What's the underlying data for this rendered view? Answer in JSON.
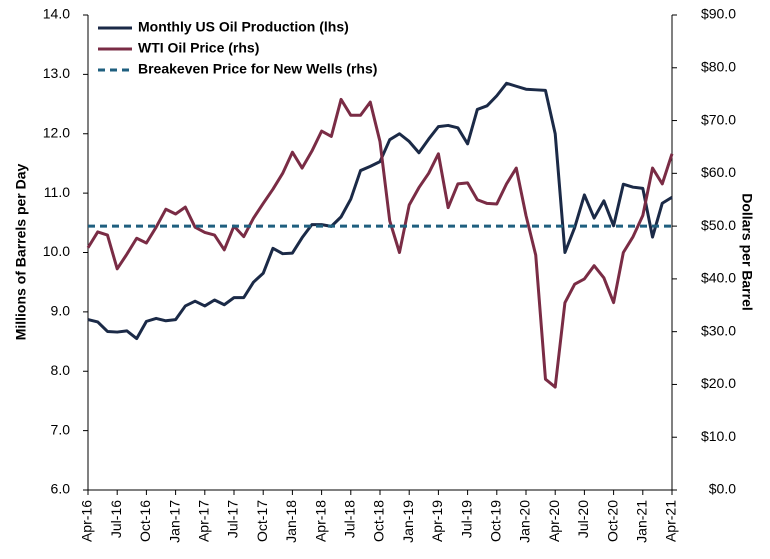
{
  "chart_data": {
    "type": "line",
    "y_label": "Millions of Barrels per Day",
    "y2_label": "Dollars per Barrel",
    "categories": [
      "Apr-16",
      null,
      null,
      "Jul-16",
      null,
      null,
      "Oct-16",
      null,
      null,
      "Jan-17",
      null,
      null,
      "Apr-17",
      null,
      null,
      "Jul-17",
      null,
      null,
      "Oct-17",
      null,
      null,
      "Jan-18",
      null,
      null,
      "Apr-18",
      null,
      null,
      "Jul-18",
      null,
      null,
      "Oct-18",
      null,
      null,
      "Jan-19",
      null,
      null,
      "Apr-19",
      null,
      null,
      "Jul-19",
      null,
      null,
      "Oct-19",
      null,
      null,
      "Jan-20",
      null,
      null,
      "Apr-20",
      null,
      null,
      "Jul-20",
      null,
      null,
      "Oct-20",
      null,
      null,
      "Jan-21",
      null,
      null,
      "Apr-21"
    ],
    "ylim": [
      6,
      14
    ],
    "yticks": [
      {
        "value": 6,
        "label": "6.0"
      },
      {
        "value": 7,
        "label": "7.0"
      },
      {
        "value": 8,
        "label": "8.0"
      },
      {
        "value": 9,
        "label": "9.0"
      },
      {
        "value": 10,
        "label": "10.0"
      },
      {
        "value": 11,
        "label": "11.0"
      },
      {
        "value": 12,
        "label": "12.0"
      },
      {
        "value": 13,
        "label": "13.0"
      },
      {
        "value": 14,
        "label": "14.0"
      }
    ],
    "y2lim": [
      0,
      90
    ],
    "y2ticks": [
      {
        "value": 0,
        "label": "$0.0"
      },
      {
        "value": 10,
        "label": "$10.0"
      },
      {
        "value": 20,
        "label": "$20.0"
      },
      {
        "value": 30,
        "label": "$30.0"
      },
      {
        "value": 40,
        "label": "$40.0"
      },
      {
        "value": 50,
        "label": "$50.0"
      },
      {
        "value": 60,
        "label": "$60.0"
      },
      {
        "value": 70,
        "label": "$70.0"
      },
      {
        "value": 80,
        "label": "$80.0"
      },
      {
        "value": 90,
        "label": "$90.0"
      }
    ],
    "legend": "upper left",
    "series": [
      {
        "name": "Monthly US Oil Production (lhs)",
        "color": "#1b2a47",
        "axis": "y",
        "values": [
          8.87,
          8.83,
          8.67,
          8.66,
          8.68,
          8.55,
          8.84,
          8.89,
          8.85,
          8.87,
          9.1,
          9.18,
          9.1,
          9.2,
          9.12,
          9.24,
          9.24,
          9.5,
          9.65,
          10.07,
          9.98,
          9.99,
          10.25,
          10.47,
          10.47,
          10.44,
          10.6,
          10.9,
          11.38,
          11.45,
          11.53,
          11.9,
          12.0,
          11.87,
          11.68,
          11.91,
          12.12,
          12.14,
          12.1,
          11.83,
          12.41,
          12.47,
          12.64,
          12.85,
          12.8,
          12.75,
          12.74,
          12.73,
          12.0,
          10.0,
          10.42,
          10.97,
          10.58,
          10.87,
          10.45,
          11.15,
          11.1,
          11.08,
          10.26,
          10.83,
          10.93
        ]
      },
      {
        "name": "WTI Oil Price (rhs)",
        "color": "#7a2c45",
        "axis": "y2",
        "values": [
          45.9,
          48.9,
          48.3,
          41.9,
          44.7,
          47.7,
          46.8,
          49.8,
          53.2,
          52.3,
          53.6,
          49.8,
          48.8,
          48.3,
          45.5,
          50.0,
          48.0,
          51.5,
          54.3,
          57.0,
          60.0,
          64.0,
          61.0,
          64.2,
          68.0,
          67.0,
          74.0,
          71.0,
          71.0,
          73.5,
          66.0,
          51.0,
          45.0,
          54.0,
          57.3,
          60.0,
          63.7,
          53.5,
          58.0,
          58.2,
          55.0,
          54.3,
          54.2,
          58.0,
          61.0,
          52.0,
          44.5,
          21.0,
          19.5,
          35.5,
          39.0,
          40.0,
          42.5,
          40.2,
          35.5,
          45.0,
          48.0,
          52.0,
          61.0,
          58.0,
          63.7
        ]
      },
      {
        "name": "Breakeven Price for New Wells (rhs)",
        "color": "#1f5f7f",
        "axis": "y2",
        "dashed": true,
        "value": 50
      }
    ]
  }
}
